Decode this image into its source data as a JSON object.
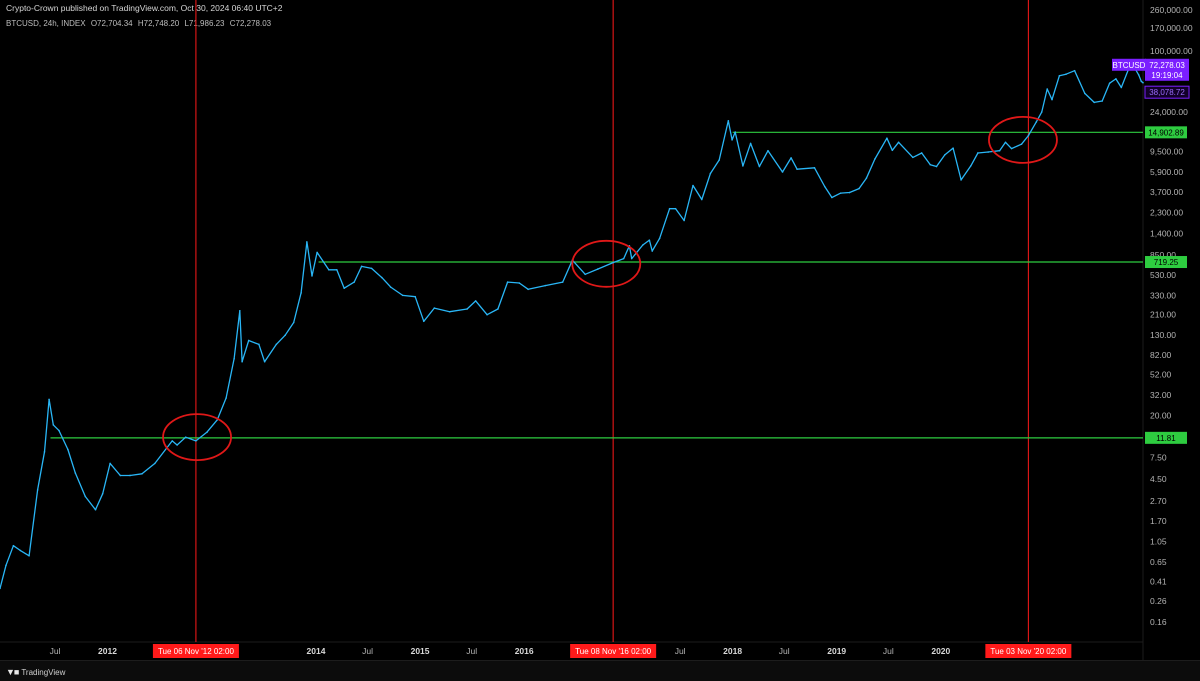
{
  "header": {
    "publisher": "Crypto-Crown published on TradingView.com, Oct 30, 2024 06:40 UTC+2",
    "symbol_info": "BTCUSD, 24h, INDEX",
    "open": "O72,704.34",
    "high": "H72,748.20",
    "low": "L71,986.23",
    "close": "C72,278.03"
  },
  "footer": {
    "brand": "TradingView",
    "brand_icon": "tradingview-logo-icon"
  },
  "colors": {
    "price_line": "#29b6f6",
    "price_down": "#ef5350",
    "hline": "#2ecc40",
    "vline": "#ff1a1a",
    "circle": "#e01818",
    "symbol_badge": "#7b1fff",
    "background": "#000000"
  },
  "chart_data": {
    "type": "line",
    "scale": "log",
    "grid": false,
    "ylim": [
      0.1,
      260000
    ],
    "xlim": [
      "2010-12-20",
      "2021-12-10"
    ],
    "y_ticks": [
      "260,000.00",
      "170,000.00",
      "100,000.00",
      "24,000.00",
      "9,500.00",
      "5,900.00",
      "3,700.00",
      "2,300.00",
      "1,400.00",
      "850.00",
      "530.00",
      "330.00",
      "210.00",
      "130.00",
      "82.00",
      "52.00",
      "32.00",
      "20.00",
      "7.50",
      "4.50",
      "2.70",
      "1.70",
      "1.05",
      "0.65",
      "0.41",
      "0.26",
      "0.16"
    ],
    "x_ticks": [
      {
        "label": "Jul",
        "date": "2011-07-01",
        "bold": false
      },
      {
        "label": "2012",
        "date": "2012-01-01",
        "bold": true
      },
      {
        "label": "Jul",
        "date": "2012-07-01",
        "bold": false
      },
      {
        "label": "2014",
        "date": "2014-01-01",
        "bold": true
      },
      {
        "label": "Jul",
        "date": "2014-07-01",
        "bold": false
      },
      {
        "label": "2015",
        "date": "2015-01-01",
        "bold": true
      },
      {
        "label": "Jul",
        "date": "2015-07-01",
        "bold": false
      },
      {
        "label": "2016",
        "date": "2016-01-01",
        "bold": true
      },
      {
        "label": "Jul",
        "date": "2016-07-01",
        "bold": false
      },
      {
        "label": "Jul",
        "date": "2017-07-01",
        "bold": false
      },
      {
        "label": "2018",
        "date": "2018-01-01",
        "bold": true
      },
      {
        "label": "Jul",
        "date": "2018-07-01",
        "bold": false
      },
      {
        "label": "2019",
        "date": "2019-01-01",
        "bold": true
      },
      {
        "label": "Jul",
        "date": "2019-07-01",
        "bold": false
      },
      {
        "label": "2020",
        "date": "2020-01-01",
        "bold": true
      }
    ],
    "series": [
      {
        "values": [
          [
            "2010-12-20",
            0.35
          ],
          [
            "2011-01-10",
            0.6
          ],
          [
            "2011-02-05",
            0.95
          ],
          [
            "2011-03-01",
            0.85
          ],
          [
            "2011-04-01",
            0.75
          ],
          [
            "2011-05-01",
            3.5
          ],
          [
            "2011-05-25",
            8.5
          ],
          [
            "2011-06-10",
            29
          ],
          [
            "2011-06-25",
            16
          ],
          [
            "2011-07-15",
            14
          ],
          [
            "2011-08-15",
            9
          ],
          [
            "2011-09-10",
            5.2
          ],
          [
            "2011-10-15",
            3
          ],
          [
            "2011-11-20",
            2.2
          ],
          [
            "2011-12-15",
            3.2
          ],
          [
            "2012-01-10",
            6.5
          ],
          [
            "2012-02-15",
            4.9
          ],
          [
            "2012-03-20",
            4.9
          ],
          [
            "2012-05-01",
            5.1
          ],
          [
            "2012-06-15",
            6.5
          ],
          [
            "2012-08-15",
            11
          ],
          [
            "2012-09-01",
            10
          ],
          [
            "2012-10-01",
            12
          ],
          [
            "2012-11-06",
            11
          ],
          [
            "2012-12-15",
            13.5
          ],
          [
            "2013-01-20",
            18
          ],
          [
            "2013-02-20",
            30
          ],
          [
            "2013-03-20",
            75
          ],
          [
            "2013-04-09",
            230
          ],
          [
            "2013-04-17",
            70
          ],
          [
            "2013-05-10",
            115
          ],
          [
            "2013-06-15",
            105
          ],
          [
            "2013-07-05",
            70
          ],
          [
            "2013-08-15",
            105
          ],
          [
            "2013-09-15",
            130
          ],
          [
            "2013-10-15",
            175
          ],
          [
            "2013-11-10",
            350
          ],
          [
            "2013-11-30",
            1150
          ],
          [
            "2013-12-18",
            520
          ],
          [
            "2014-01-05",
            900
          ],
          [
            "2014-02-15",
            600
          ],
          [
            "2014-03-15",
            600
          ],
          [
            "2014-04-10",
            390
          ],
          [
            "2014-05-15",
            450
          ],
          [
            "2014-06-10",
            650
          ],
          [
            "2014-07-15",
            620
          ],
          [
            "2014-08-20",
            500
          ],
          [
            "2014-09-20",
            400
          ],
          [
            "2014-11-01",
            330
          ],
          [
            "2014-12-15",
            320
          ],
          [
            "2015-01-14",
            180
          ],
          [
            "2015-02-20",
            245
          ],
          [
            "2015-04-15",
            225
          ],
          [
            "2015-06-15",
            240
          ],
          [
            "2015-07-15",
            290
          ],
          [
            "2015-08-24",
            210
          ],
          [
            "2015-10-01",
            240
          ],
          [
            "2015-11-04",
            450
          ],
          [
            "2015-12-15",
            440
          ],
          [
            "2016-01-15",
            380
          ],
          [
            "2016-03-15",
            415
          ],
          [
            "2016-05-15",
            450
          ],
          [
            "2016-06-18",
            750
          ],
          [
            "2016-08-02",
            540
          ],
          [
            "2016-09-15",
            610
          ],
          [
            "2016-11-08",
            710
          ],
          [
            "2016-12-15",
            780
          ],
          [
            "2017-01-04",
            1050
          ],
          [
            "2017-01-12",
            780
          ],
          [
            "2017-02-20",
            1070
          ],
          [
            "2017-03-15",
            1200
          ],
          [
            "2017-03-25",
            930
          ],
          [
            "2017-04-20",
            1250
          ],
          [
            "2017-05-25",
            2500
          ],
          [
            "2017-06-15",
            2500
          ],
          [
            "2017-07-15",
            1900
          ],
          [
            "2017-08-15",
            4300
          ],
          [
            "2017-09-15",
            3100
          ],
          [
            "2017-10-15",
            5700
          ],
          [
            "2017-11-15",
            7800
          ],
          [
            "2017-12-17",
            19500
          ],
          [
            "2017-12-30",
            12500
          ],
          [
            "2018-01-10",
            15000
          ],
          [
            "2018-02-06",
            6800
          ],
          [
            "2018-03-05",
            11500
          ],
          [
            "2018-04-05",
            6700
          ],
          [
            "2018-05-05",
            9700
          ],
          [
            "2018-06-25",
            5900
          ],
          [
            "2018-07-25",
            8200
          ],
          [
            "2018-08-15",
            6300
          ],
          [
            "2018-10-15",
            6500
          ],
          [
            "2018-11-20",
            4200
          ],
          [
            "2018-12-15",
            3250
          ],
          [
            "2019-01-15",
            3600
          ],
          [
            "2019-02-15",
            3650
          ],
          [
            "2019-03-20",
            4000
          ],
          [
            "2019-04-15",
            5100
          ],
          [
            "2019-05-15",
            8000
          ],
          [
            "2019-06-26",
            13000
          ],
          [
            "2019-07-15",
            9800
          ],
          [
            "2019-08-06",
            11800
          ],
          [
            "2019-09-25",
            8300
          ],
          [
            "2019-10-26",
            9200
          ],
          [
            "2019-11-25",
            7000
          ],
          [
            "2019-12-17",
            6700
          ],
          [
            "2020-01-15",
            8800
          ],
          [
            "2020-02-13",
            10300
          ],
          [
            "2020-03-12",
            4900
          ],
          [
            "2020-04-15",
            6800
          ],
          [
            "2020-05-10",
            9200
          ],
          [
            "2020-06-15",
            9400
          ],
          [
            "2020-07-25",
            9700
          ],
          [
            "2020-08-15",
            11800
          ],
          [
            "2020-09-05",
            10200
          ],
          [
            "2020-10-10",
            11300
          ],
          [
            "2020-11-03",
            13800
          ],
          [
            "2020-12-01",
            19000
          ],
          [
            "2020-12-20",
            24000
          ],
          [
            "2021-01-08",
            41000
          ],
          [
            "2021-01-25",
            32000
          ],
          [
            "2021-02-20",
            56000
          ],
          [
            "2021-03-15",
            58000
          ],
          [
            "2021-04-14",
            63000
          ],
          [
            "2021-05-20",
            37000
          ],
          [
            "2021-06-22",
            30000
          ],
          [
            "2021-07-20",
            31000
          ],
          [
            "2021-08-15",
            47000
          ],
          [
            "2021-09-06",
            52000
          ],
          [
            "2021-09-25",
            42500
          ],
          [
            "2021-10-20",
            65000
          ],
          [
            "2021-11-10",
            68000
          ],
          [
            "2021-11-25",
            57000
          ],
          [
            "2021-12-04",
            49000
          ],
          [
            "2021-12-10",
            47500
          ]
        ]
      }
    ],
    "horizontal_levels": [
      {
        "value": 11.81,
        "label": "11.81",
        "from": "2011-06-15"
      },
      {
        "value": 719.25,
        "label": "719.25",
        "from": "2014-01-10"
      },
      {
        "value": 14902.89,
        "label": "14,902.89",
        "from": "2018-01-01"
      }
    ],
    "vertical_markers": [
      {
        "date": "2012-11-06",
        "label": "Tue 06 Nov '12  02:00"
      },
      {
        "date": "2016-11-08",
        "label": "Tue 08 Nov '16  02:00"
      },
      {
        "date": "2020-11-03",
        "label": "Tue 03 Nov '20  02:00"
      }
    ],
    "circles": [
      {
        "date": "2012-11-10",
        "value": 12
      },
      {
        "date": "2016-10-15",
        "value": 690
      },
      {
        "date": "2020-10-15",
        "value": 12500
      }
    ],
    "price_labels": {
      "symbol": "BTCUSD",
      "price": "72,278.03",
      "countdown": "19:19:04",
      "secondary": "38,078.72"
    }
  }
}
